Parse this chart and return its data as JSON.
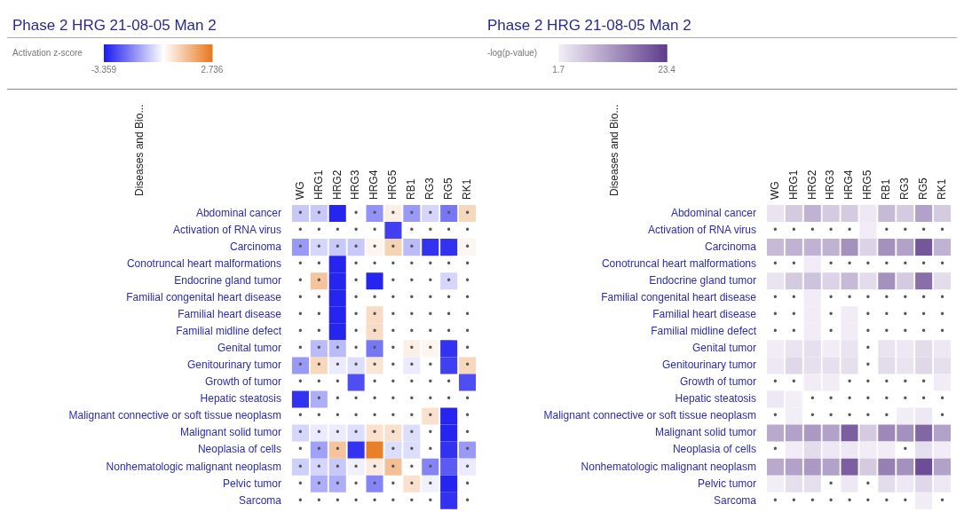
{
  "chart_data": [
    {
      "type": "heatmap",
      "title": "Phase 2 HRG 21-08-05 Man 2",
      "clabel": "Activation z-score",
      "ylabel": "Diseases and Bio...",
      "clim": [
        -3.359,
        2.736
      ],
      "cticks": [
        -3.359,
        2.736
      ],
      "colors": [
        "#1a1aee",
        "#ffffff",
        "#e8781e"
      ],
      "categories": [
        "WG",
        "HRG1",
        "HRG2",
        "HRG3",
        "HRG4",
        "HRG5",
        "RB1",
        "RG3",
        "RG5",
        "RK1"
      ],
      "y_categories": [
        "Abdominal cancer",
        "Activation of RNA virus",
        "Carcinoma",
        "Conotruncal heart malformations",
        "Endocrine gland tumor",
        "Familial congenital heart disease",
        "Familial heart disease",
        "Familial midline defect",
        "Genital tumor",
        "Genitourinary tumor",
        "Growth of tumor",
        "Hepatic steatosis",
        "Malignant connective or soft tissue neoplasm",
        "Malignant solid tumor",
        "Neoplasia of cells",
        "Nonhematologic malignant neoplasm",
        "Pelvic tumor",
        "Sarcoma"
      ],
      "cells": [
        [
          -0.8,
          -0.8,
          -3.2,
          null,
          -1.6,
          0.3,
          -1.5,
          -0.6,
          -2.0,
          0.8
        ],
        [
          null,
          null,
          null,
          null,
          null,
          -2.8,
          null,
          null,
          null,
          null
        ],
        [
          -1.5,
          -0.6,
          -0.8,
          -0.8,
          0.2,
          0.9,
          -1.0,
          -3.0,
          -3.0,
          0.2
        ],
        [
          null,
          null,
          -3.2,
          null,
          null,
          null,
          null,
          null,
          null,
          null
        ],
        [
          null,
          1.2,
          -3.2,
          null,
          -3.2,
          null,
          null,
          null,
          -0.6,
          null
        ],
        [
          null,
          null,
          -3.2,
          null,
          null,
          null,
          null,
          null,
          null,
          null
        ],
        [
          null,
          null,
          -3.2,
          null,
          0.7,
          null,
          null,
          null,
          null,
          null
        ],
        [
          null,
          null,
          -3.2,
          null,
          0.7,
          null,
          null,
          null,
          null,
          null
        ],
        [
          null,
          -1.0,
          -1.0,
          null,
          -2.0,
          null,
          0.3,
          0.2,
          -3.0,
          null
        ],
        [
          -1.5,
          0.8,
          -0.3,
          -0.5,
          0.5,
          null,
          -0.3,
          null,
          -2.8,
          0.8
        ],
        [
          null,
          null,
          null,
          -2.6,
          null,
          null,
          null,
          null,
          null,
          -2.6
        ],
        [
          -3.0,
          -1.2,
          null,
          null,
          null,
          null,
          null,
          null,
          null,
          null
        ],
        [
          null,
          null,
          null,
          null,
          null,
          null,
          null,
          0.6,
          -3.2,
          null
        ],
        [
          -0.6,
          -0.3,
          -0.3,
          -0.5,
          0.6,
          0.6,
          -0.5,
          null,
          -3.2,
          null
        ],
        [
          null,
          -1.4,
          1.2,
          -3.0,
          2.6,
          -0.5,
          -0.5,
          null,
          -3.0,
          -1.5
        ],
        [
          -0.7,
          -0.6,
          -0.8,
          -0.2,
          0.4,
          1.3,
          null,
          -1.8,
          -2.4,
          -0.3
        ],
        [
          null,
          -1.2,
          -1.2,
          null,
          -1.8,
          null,
          0.6,
          -0.2,
          -3.2,
          null
        ],
        [
          null,
          null,
          null,
          null,
          null,
          null,
          null,
          null,
          -3.0,
          null
        ]
      ],
      "cell_labels": [
        [
          "•",
          "•",
          null,
          "•",
          "•",
          "•",
          "•",
          "•",
          "•",
          "•"
        ],
        [
          "•",
          "•",
          "•",
          "•",
          "•",
          null,
          "•",
          "•",
          "•",
          "•"
        ],
        [
          "•",
          "•",
          "•",
          "•",
          "•",
          "•",
          "•",
          null,
          null,
          "•"
        ],
        [
          "•",
          "•",
          null,
          "•",
          "•",
          "•",
          "•",
          "•",
          "•",
          "•"
        ],
        [
          "•",
          "•",
          null,
          "•",
          null,
          "•",
          "•",
          "•",
          "•",
          "•"
        ],
        [
          "•",
          "•",
          null,
          "•",
          "•",
          "•",
          "•",
          "•",
          "•",
          "•"
        ],
        [
          "•",
          "•",
          null,
          "•",
          "•",
          "•",
          "•",
          "•",
          "•",
          "•"
        ],
        [
          "•",
          "•",
          null,
          "•",
          "•",
          "•",
          "•",
          "•",
          "•",
          "•"
        ],
        [
          "•",
          "•",
          "•",
          "•",
          "•",
          "•",
          "•",
          "•",
          null,
          "•"
        ],
        [
          "•",
          "•",
          "•",
          "•",
          "•",
          "•",
          "•",
          "•",
          null,
          "•"
        ],
        [
          "•",
          "•",
          "•",
          null,
          "•",
          "•",
          "•",
          "•",
          "•",
          null
        ],
        [
          null,
          "•",
          "•",
          "•",
          "•",
          "•",
          "•",
          "•",
          "•",
          "•"
        ],
        [
          "•",
          "•",
          "•",
          "•",
          "•",
          "•",
          "•",
          "•",
          null,
          "•"
        ],
        [
          "•",
          "•",
          "•",
          "•",
          "•",
          "•",
          "•",
          "•",
          null,
          "•"
        ],
        [
          "•",
          "•",
          "•",
          null,
          null,
          "•",
          "•",
          "•",
          null,
          "•"
        ],
        [
          "•",
          "•",
          "•",
          "•",
          "•",
          "•",
          "•",
          "•",
          null,
          "•"
        ],
        [
          "•",
          "•",
          "•",
          "•",
          "•",
          "•",
          "•",
          "•",
          null,
          "•"
        ],
        [
          "•",
          "•",
          "•",
          "•",
          "•",
          "•",
          "•",
          "•",
          null,
          "•"
        ]
      ]
    },
    {
      "type": "heatmap",
      "title": "Phase 2 HRG 21-08-05 Man 2",
      "clabel": "-log(p-value)",
      "ylabel": "Diseases and Bio...",
      "clim": [
        1.7,
        23.4
      ],
      "cticks": [
        1.7,
        23.4
      ],
      "colors": [
        "#f3eff7",
        "#5c3a8a"
      ],
      "categories": [
        "WG",
        "HRG1",
        "HRG2",
        "HRG3",
        "HRG4",
        "HRG5",
        "RB1",
        "RG3",
        "RG5",
        "RK1"
      ],
      "y_categories": [
        "Abdominal cancer",
        "Activation of RNA virus",
        "Carcinoma",
        "Conotruncal heart malformations",
        "Endocrine gland tumor",
        "Familial congenital heart disease",
        "Familial heart disease",
        "Familial midline defect",
        "Genital tumor",
        "Genitourinary tumor",
        "Growth of tumor",
        "Hepatic steatosis",
        "Malignant connective or soft tissue neoplasm",
        "Malignant solid tumor",
        "Neoplasia of cells",
        "Nonhematologic malignant neoplasm",
        "Pelvic tumor",
        "Sarcoma"
      ],
      "cells": [
        [
          3,
          6,
          9,
          6,
          6,
          2.5,
          8,
          6,
          11,
          6
        ],
        [
          null,
          null,
          null,
          null,
          null,
          2,
          null,
          null,
          null,
          null
        ],
        [
          8,
          9,
          9,
          9,
          13,
          5,
          13,
          11,
          20,
          9
        ],
        [
          null,
          null,
          2,
          null,
          null,
          null,
          null,
          null,
          null,
          null
        ],
        [
          3,
          6,
          7,
          5,
          8,
          4,
          13,
          6,
          17,
          4
        ],
        [
          null,
          null,
          2,
          null,
          null,
          null,
          null,
          null,
          null,
          null
        ],
        [
          null,
          null,
          2,
          null,
          2,
          null,
          null,
          null,
          null,
          null
        ],
        [
          null,
          null,
          2,
          null,
          2,
          null,
          null,
          null,
          null,
          null
        ],
        [
          2,
          3,
          3.5,
          2,
          3,
          null,
          3,
          2.5,
          4,
          2.5
        ],
        [
          2.5,
          4.5,
          3.5,
          3.5,
          3.5,
          null,
          4,
          3,
          4.5,
          3.5
        ],
        [
          null,
          null,
          2,
          2,
          null,
          null,
          null,
          null,
          null,
          2
        ],
        [
          2.5,
          1.7,
          null,
          null,
          null,
          null,
          null,
          null,
          null,
          null
        ],
        [
          null,
          1.8,
          null,
          null,
          null,
          null,
          null,
          1.8,
          2.5,
          null
        ],
        [
          10,
          11,
          12,
          11,
          19,
          6,
          14,
          13,
          18,
          11
        ],
        [
          null,
          2,
          4,
          2.5,
          2.5,
          2,
          2,
          null,
          3.5,
          2
        ],
        [
          10,
          11,
          12,
          11,
          19,
          6,
          15,
          13,
          21,
          11
        ],
        [
          1.8,
          3.5,
          3.5,
          null,
          2.5,
          null,
          4,
          2.5,
          4.5,
          2.5
        ],
        [
          null,
          null,
          null,
          null,
          null,
          null,
          null,
          null,
          2,
          null
        ]
      ],
      "cell_labels": [
        [
          null,
          null,
          null,
          null,
          null,
          null,
          null,
          null,
          null,
          null
        ],
        [
          "•",
          "•",
          "•",
          "•",
          "•",
          null,
          "•",
          "•",
          "•",
          "•"
        ],
        [
          null,
          null,
          null,
          null,
          null,
          null,
          null,
          null,
          null,
          null
        ],
        [
          "•",
          "•",
          null,
          "•",
          "•",
          "•",
          "•",
          "•",
          "•",
          "•"
        ],
        [
          null,
          null,
          null,
          null,
          null,
          null,
          null,
          null,
          null,
          null
        ],
        [
          "•",
          "•",
          null,
          "•",
          "•",
          "•",
          "•",
          "•",
          "•",
          "•"
        ],
        [
          "•",
          "•",
          null,
          "•",
          null,
          "•",
          "•",
          "•",
          "•",
          "•"
        ],
        [
          "•",
          "•",
          null,
          "•",
          null,
          "•",
          "•",
          "•",
          "•",
          "•"
        ],
        [
          null,
          null,
          null,
          null,
          null,
          "•",
          null,
          null,
          null,
          null
        ],
        [
          null,
          null,
          null,
          null,
          null,
          "•",
          null,
          null,
          null,
          null
        ],
        [
          "•",
          "•",
          null,
          null,
          "•",
          "•",
          "•",
          "•",
          "•",
          null
        ],
        [
          null,
          null,
          "•",
          "•",
          "•",
          "•",
          "•",
          "•",
          "•",
          "•"
        ],
        [
          "•",
          null,
          "•",
          "•",
          "•",
          "•",
          "•",
          null,
          null,
          "•"
        ],
        [
          null,
          null,
          null,
          null,
          null,
          null,
          null,
          null,
          null,
          null
        ],
        [
          "•",
          null,
          null,
          null,
          null,
          null,
          null,
          "•",
          null,
          null
        ],
        [
          null,
          null,
          null,
          null,
          null,
          null,
          null,
          null,
          null,
          null
        ],
        [
          null,
          null,
          null,
          "•",
          null,
          "•",
          null,
          null,
          null,
          null
        ],
        [
          "•",
          "•",
          "•",
          "•",
          "•",
          "•",
          "•",
          "•",
          null,
          "•"
        ]
      ]
    }
  ]
}
